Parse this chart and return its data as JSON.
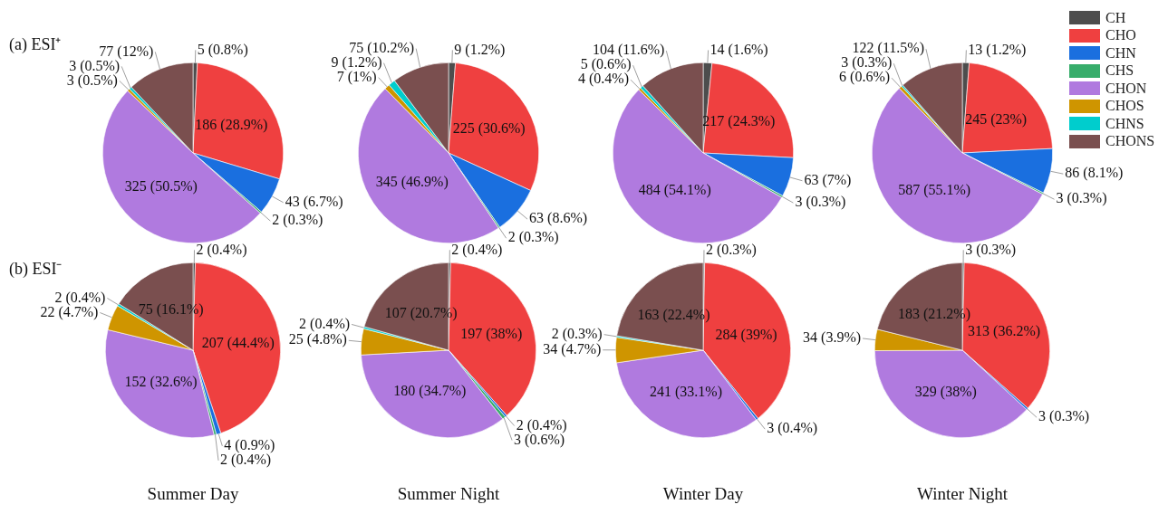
{
  "chart_data": [
    {
      "type": "pie",
      "legend": "right",
      "annotations": [
        "(a)  ESI⁺"
      ],
      "categories": [
        "CH",
        "CHO",
        "CHN",
        "CHS",
        "CHON",
        "CHOS",
        "CHNS",
        "CHONS"
      ],
      "colors": [
        "#4d4d4d",
        "#ef4040",
        "#1a6fdf",
        "#37ad6b",
        "#b07adf",
        "#cf9500",
        "#00cdcd",
        "#7a4f4f"
      ],
      "values": [
        5,
        186,
        43,
        2,
        325,
        3,
        3,
        77
      ],
      "value_labels": [
        "5 (0.8%)",
        "186 (28.9%)",
        "43 (6.7%)",
        "2 (0.3%)",
        "325 (50.5%)",
        "3 (0.5%)",
        "3 (0.5%)",
        "77 (12%)"
      ]
    },
    {
      "type": "pie",
      "categories": [
        null,
        null,
        null,
        null,
        null,
        null,
        null,
        null
      ],
      "colors": [
        "#4d4d4d",
        "#ef4040",
        "#1a6fdf",
        "#37ad6b",
        "#b07adf",
        "#cf9500",
        "#00cdcd",
        "#7a4f4f"
      ],
      "values": [
        9,
        225,
        63,
        2,
        345,
        7,
        9,
        75
      ],
      "value_labels": [
        "9 (1.2%)",
        "225 (30.6%)",
        "63 (8.6%)",
        "2 (0.3%)",
        "345 (46.9%)",
        "7 (1%)",
        "9 (1.2%)",
        "75 (10.2%)"
      ]
    },
    {
      "type": "pie",
      "categories": [
        null,
        null,
        null,
        null,
        null,
        null,
        null,
        null
      ],
      "colors": [
        "#4d4d4d",
        "#ef4040",
        "#1a6fdf",
        "#37ad6b",
        "#b07adf",
        "#cf9500",
        "#00cdcd",
        "#7a4f4f"
      ],
      "values": [
        14,
        217,
        63,
        3,
        484,
        4,
        5,
        104
      ],
      "value_labels": [
        "14 (1.6%)",
        "217 (24.3%)",
        "63 (7%)",
        "3 (0.3%)",
        "484 (54.1%)",
        "4 (0.4%)",
        "5 (0.6%)",
        "104 (11.6%)"
      ]
    },
    {
      "type": "pie",
      "categories": [
        null,
        null,
        null,
        null,
        null,
        null,
        null,
        null
      ],
      "colors": [
        "#4d4d4d",
        "#ef4040",
        "#1a6fdf",
        "#37ad6b",
        "#b07adf",
        "#cf9500",
        "#00cdcd",
        "#7a4f4f"
      ],
      "values": [
        13,
        245,
        86,
        3,
        587,
        6,
        3,
        122
      ],
      "value_labels": [
        "13 (1.2%)",
        "245 (23%)",
        "86 (8.1%)",
        "3 (0.3%)",
        "587 (55.1%)",
        "6 (0.6%)",
        "3 (0.3%)",
        "122 (11.5%)"
      ]
    },
    {
      "type": "pie",
      "title": "Summer Day",
      "annotations": [
        "(b)  ESI⁻"
      ],
      "categories": [
        null,
        null,
        null,
        null,
        null,
        null,
        null,
        null
      ],
      "colors": [
        "#4d4d4d",
        "#ef4040",
        "#1a6fdf",
        "#37ad6b",
        "#b07adf",
        "#cf9500",
        "#00cdcd",
        "#7a4f4f"
      ],
      "values": [
        2,
        207,
        4,
        2,
        152,
        22,
        2,
        75
      ],
      "value_labels": [
        "2 (0.4%)",
        "207 (44.4%)",
        "4 (0.9%)",
        "2 (0.4%)",
        "152 (32.6%)",
        "22 (4.7%)",
        "2 (0.4%)",
        "75 (16.1%)"
      ]
    },
    {
      "type": "pie",
      "title": "Summer Night",
      "categories": [
        null,
        null,
        null,
        null,
        null,
        null,
        null,
        null
      ],
      "colors": [
        "#4d4d4d",
        "#ef4040",
        "#1a6fdf",
        "#37ad6b",
        "#b07adf",
        "#cf9500",
        "#00cdcd",
        "#7a4f4f"
      ],
      "values": [
        2,
        197,
        2,
        3,
        180,
        25,
        2,
        107
      ],
      "value_labels": [
        "2 (0.4%)",
        "197 (38%)",
        "2 (0.4%)",
        "3 (0.6%)",
        "180 (34.7%)",
        "25 (4.8%)",
        "2 (0.4%)",
        "107 (20.7%)"
      ]
    },
    {
      "type": "pie",
      "title": "Winter Day",
      "categories": [
        null,
        null,
        null,
        null,
        null,
        null,
        null,
        null
      ],
      "colors": [
        "#4d4d4d",
        "#ef4040",
        "#1a6fdf",
        "#37ad6b",
        "#b07adf",
        "#cf9500",
        "#00cdcd",
        "#7a4f4f"
      ],
      "values": [
        2,
        284,
        3,
        0,
        241,
        34,
        2,
        163
      ],
      "value_labels": [
        "2 (0.3%)",
        "284 (39%)",
        "3 (0.4%)",
        null,
        "241 (33.1%)",
        "34 (4.7%)",
        "2 (0.3%)",
        "163 (22.4%)"
      ]
    },
    {
      "type": "pie",
      "title": "Winter Night",
      "categories": [
        null,
        null,
        null,
        null,
        null,
        null,
        null,
        null
      ],
      "colors": [
        "#4d4d4d",
        "#ef4040",
        "#1a6fdf",
        "#37ad6b",
        "#b07adf",
        "#cf9500",
        "#00cdcd",
        "#7a4f4f"
      ],
      "values": [
        3,
        313,
        3,
        0,
        329,
        34,
        0,
        183
      ],
      "value_labels": [
        "3 (0.3%)",
        "313 (36.2%)",
        "3 (0.3%)",
        null,
        "329 (38%)",
        "34 (3.9%)",
        null,
        "183 (21.2%)"
      ]
    }
  ]
}
